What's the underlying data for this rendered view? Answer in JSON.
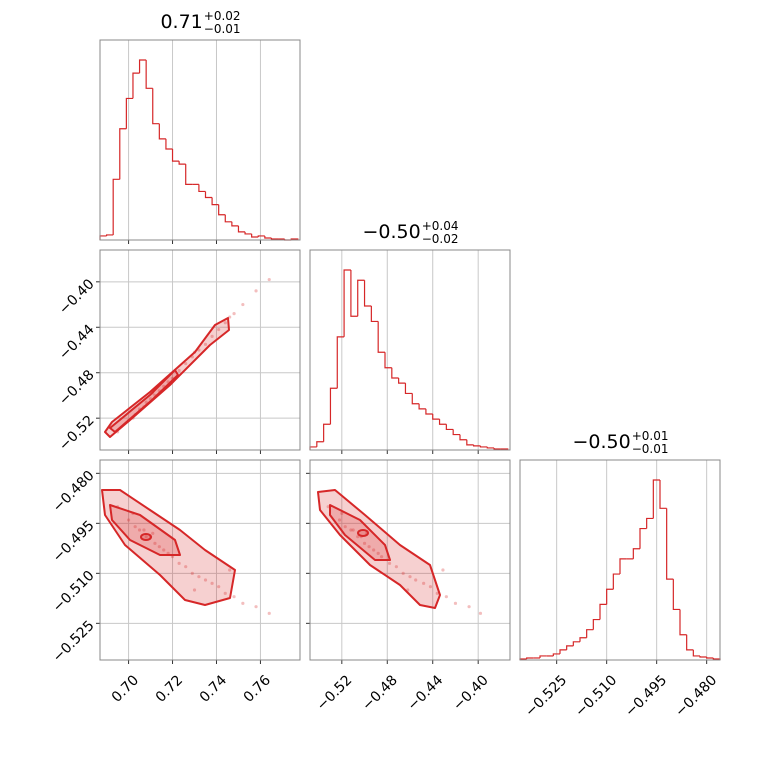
{
  "chart_data": {
    "type": "corner",
    "color": "#d62728",
    "grid": true,
    "params": [
      {
        "title": {
          "median": "0.71",
          "upper": "+0.02",
          "lower": "−0.01"
        },
        "lim": [
          0.687,
          0.778
        ],
        "ticks": [
          {
            "value": 0.7,
            "label": "0.70"
          },
          0.72,
          0.74,
          0.76
        ],
        "bins": [
          0.687,
          0.69,
          0.693,
          0.696,
          0.699,
          0.702,
          0.705,
          0.708,
          0.711,
          0.714,
          0.717,
          0.72,
          0.723,
          0.726,
          0.729,
          0.732,
          0.735,
          0.738,
          0.741,
          0.744,
          0.747,
          0.75,
          0.753,
          0.756,
          0.759,
          0.762,
          0.765,
          0.768,
          0.771,
          0.774,
          0.777
        ],
        "counts": [
          4,
          5,
          60,
          110,
          140,
          165,
          178,
          150,
          115,
          100,
          90,
          78,
          75,
          55,
          55,
          48,
          42,
          35,
          25,
          18,
          14,
          8,
          6,
          3,
          4,
          2,
          1,
          1,
          0,
          1
        ]
      },
      {
        "title": {
          "median": "−0.50",
          "upper": "+0.04",
          "lower": "−0.02"
        },
        "lim": [
          -0.548,
          -0.372
        ],
        "ticks": [
          {
            "value": -0.52,
            "label": "−0.52"
          },
          {
            "value": -0.48,
            "label": "−0.48"
          },
          {
            "value": -0.44,
            "label": "−0.44"
          },
          {
            "value": -0.4,
            "label": "−0.40"
          }
        ],
        "bins": [
          -0.548,
          -0.542,
          -0.536,
          -0.53,
          -0.524,
          -0.518,
          -0.512,
          -0.506,
          -0.5,
          -0.494,
          -0.488,
          -0.482,
          -0.476,
          -0.47,
          -0.464,
          -0.458,
          -0.452,
          -0.446,
          -0.44,
          -0.434,
          -0.428,
          -0.422,
          -0.416,
          -0.41,
          -0.404,
          -0.398,
          -0.392,
          -0.386,
          -0.38,
          -0.374
        ],
        "counts": [
          3,
          8,
          25,
          60,
          110,
          175,
          130,
          165,
          140,
          125,
          95,
          80,
          70,
          65,
          55,
          45,
          40,
          35,
          30,
          25,
          20,
          15,
          10,
          5,
          4,
          3,
          2,
          1,
          1
        ]
      },
      {
        "title": {
          "median": "−0.50",
          "upper": "+0.01",
          "lower": "−0.01"
        },
        "lim": [
          -0.536,
          -0.476
        ],
        "ticks": [
          {
            "value": -0.525,
            "label": "−0.525"
          },
          {
            "value": -0.51,
            "label": "−0.510"
          },
          {
            "value": -0.495,
            "label": "−0.495"
          },
          {
            "value": -0.48,
            "label": "−0.480"
          }
        ],
        "bins": [
          -0.536,
          -0.534,
          -0.532,
          -0.53,
          -0.528,
          -0.526,
          -0.524,
          -0.522,
          -0.52,
          -0.518,
          -0.516,
          -0.514,
          -0.512,
          -0.51,
          -0.508,
          -0.506,
          -0.504,
          -0.502,
          -0.5,
          -0.498,
          -0.496,
          -0.494,
          -0.492,
          -0.49,
          -0.488,
          -0.486,
          -0.484,
          -0.482,
          -0.48,
          -0.478,
          -0.476
        ],
        "counts": [
          1,
          2,
          2,
          4,
          4,
          6,
          10,
          14,
          18,
          22,
          30,
          40,
          55,
          70,
          85,
          100,
          100,
          110,
          130,
          140,
          178,
          150,
          80,
          50,
          25,
          10,
          4,
          3,
          2,
          1
        ]
      }
    ],
    "samples": [
      [
        0.695,
        0.7,
        0.703,
        0.705,
        0.707,
        0.708,
        0.71,
        0.712,
        0.714,
        0.716,
        0.718,
        0.72,
        0.723,
        0.726,
        0.729,
        0.732,
        0.735,
        0.738,
        0.741,
        0.744,
        0.748,
        0.752,
        0.758,
        0.764,
        0.702,
        0.711,
        0.73,
        0.746
      ],
      [
        -0.532,
        -0.522,
        -0.517,
        -0.512,
        -0.51,
        -0.506,
        -0.503,
        -0.5,
        -0.496,
        -0.492,
        -0.488,
        -0.485,
        -0.478,
        -0.472,
        -0.466,
        -0.46,
        -0.455,
        -0.448,
        -0.442,
        -0.436,
        -0.428,
        -0.42,
        -0.408,
        -0.398,
        -0.52,
        -0.498,
        -0.462,
        -0.431
      ],
      [
        -0.49,
        -0.494,
        -0.496,
        -0.497,
        -0.497,
        -0.499,
        -0.499,
        -0.501,
        -0.502,
        -0.503,
        -0.504,
        -0.505,
        -0.507,
        -0.508,
        -0.51,
        -0.511,
        -0.512,
        -0.513,
        -0.514,
        -0.516,
        -0.517,
        -0.519,
        -0.52,
        -0.522,
        -0.492,
        -0.498,
        -0.515,
        -0.509
      ]
    ]
  }
}
